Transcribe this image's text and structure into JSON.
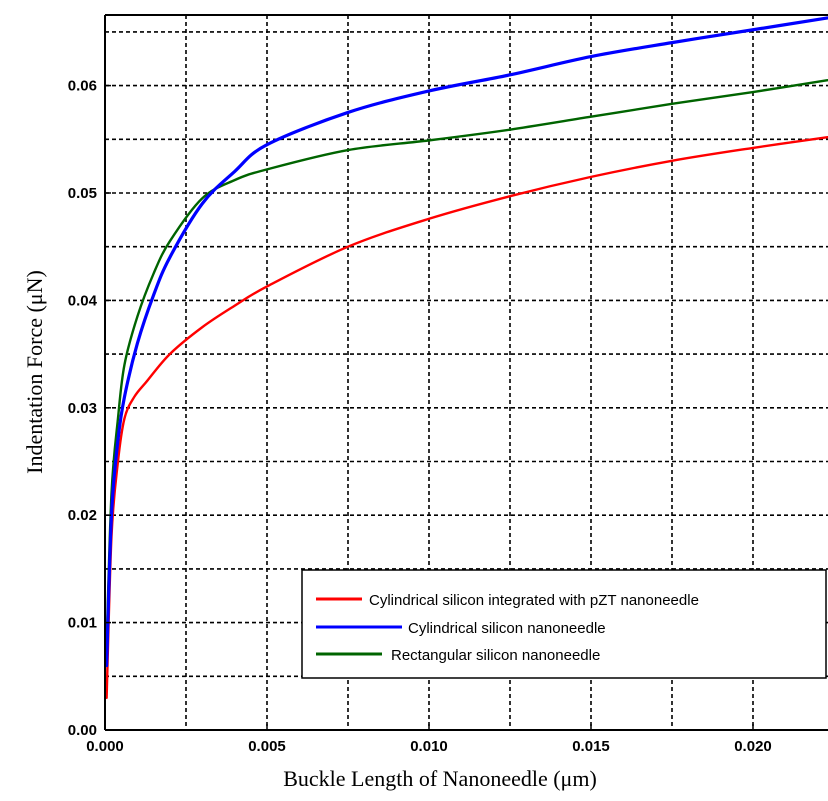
{
  "chart_data": {
    "type": "line",
    "title": "",
    "xlabel": "Buckle Length of Nanoneedle (μm)",
    "ylabel": "Indentation Force (μN)",
    "xlim": [
      0,
      0.0225
    ],
    "ylim": [
      0,
      0.066
    ],
    "x_ticks": [
      0,
      0.005,
      0.01,
      0.015,
      0.02
    ],
    "x_tick_labels": [
      "0.000",
      "0.005",
      "0.010",
      "0.015",
      "0.020"
    ],
    "y_ticks": [
      0,
      0.01,
      0.02,
      0.03,
      0.04,
      0.05,
      0.06
    ],
    "y_tick_labels": [
      "0.00",
      "0.01",
      "0.02",
      "0.03",
      "0.04",
      "0.05",
      "0.06"
    ],
    "grid": true,
    "grid_style": "dashed",
    "legend_position": "bottom-right",
    "series": [
      {
        "name": "Cylindrical silicon integrated with pZT nanoneedle",
        "color": "#ff0000",
        "points": [
          [
            5e-05,
            0.003
          ],
          [
            0.0002,
            0.018
          ],
          [
            0.0004,
            0.025
          ],
          [
            0.0006,
            0.029
          ],
          [
            0.0009,
            0.031
          ],
          [
            0.0013,
            0.0325
          ],
          [
            0.002,
            0.035
          ],
          [
            0.003,
            0.0375
          ],
          [
            0.004,
            0.0395
          ],
          [
            0.005,
            0.0413
          ],
          [
            0.0075,
            0.045
          ],
          [
            0.01,
            0.0476
          ],
          [
            0.0125,
            0.0497
          ],
          [
            0.015,
            0.0515
          ],
          [
            0.0175,
            0.053
          ],
          [
            0.02,
            0.0542
          ],
          [
            0.0223,
            0.0552
          ]
        ]
      },
      {
        "name": "Cylindrical silicon nanoneedle",
        "color": "#0000ff",
        "points": [
          [
            5e-05,
            0.006
          ],
          [
            0.0002,
            0.02
          ],
          [
            0.0004,
            0.027
          ],
          [
            0.0006,
            0.031
          ],
          [
            0.001,
            0.036
          ],
          [
            0.0015,
            0.0405
          ],
          [
            0.002,
            0.044
          ],
          [
            0.003,
            0.049
          ],
          [
            0.004,
            0.052
          ],
          [
            0.005,
            0.0545
          ],
          [
            0.0075,
            0.0575
          ],
          [
            0.01,
            0.0595
          ],
          [
            0.0125,
            0.061
          ],
          [
            0.015,
            0.0627
          ],
          [
            0.0175,
            0.064
          ],
          [
            0.02,
            0.0652
          ],
          [
            0.0223,
            0.0663
          ]
        ]
      },
      {
        "name": "Rectangular silicon nanoneedle",
        "color": "#006400",
        "points": [
          [
            5e-05,
            0.008
          ],
          [
            0.0002,
            0.022
          ],
          [
            0.0004,
            0.029
          ],
          [
            0.0006,
            0.034
          ],
          [
            0.001,
            0.0385
          ],
          [
            0.0015,
            0.0425
          ],
          [
            0.002,
            0.0455
          ],
          [
            0.003,
            0.0495
          ],
          [
            0.004,
            0.0512
          ],
          [
            0.005,
            0.0522
          ],
          [
            0.0075,
            0.054
          ],
          [
            0.01,
            0.0549
          ],
          [
            0.0125,
            0.0559
          ],
          [
            0.015,
            0.0571
          ],
          [
            0.0175,
            0.0583
          ],
          [
            0.02,
            0.0594
          ],
          [
            0.0223,
            0.0605
          ]
        ]
      }
    ]
  }
}
